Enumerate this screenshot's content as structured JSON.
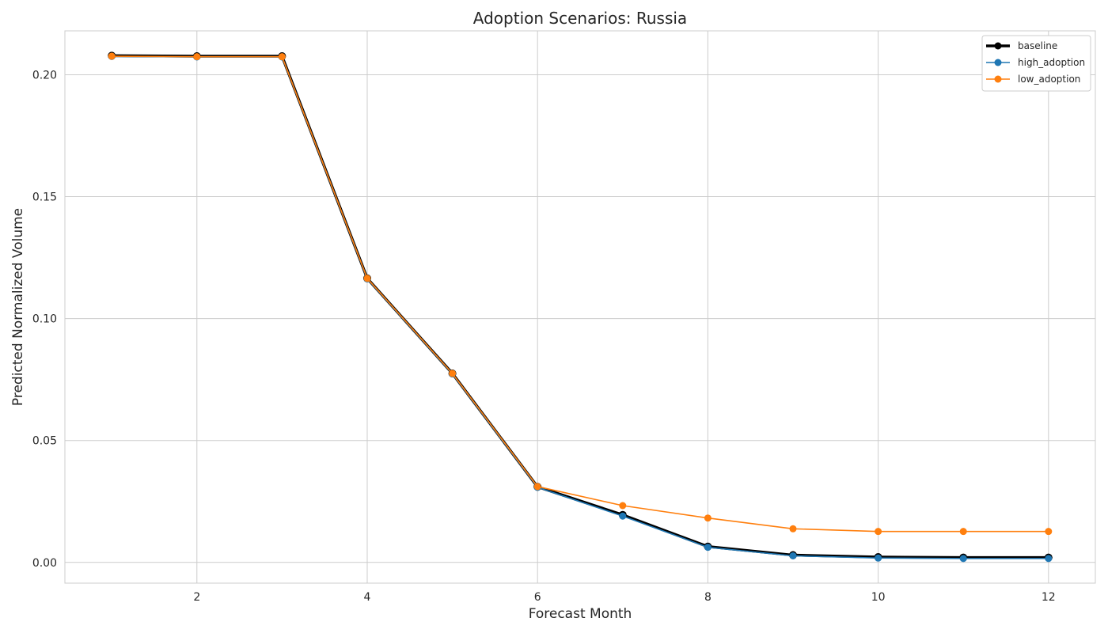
{
  "chart_data": {
    "type": "line",
    "title": "Adoption Scenarios: Russia",
    "xlabel": "Forecast Month",
    "ylabel": "Predicted Normalized Volume",
    "xlim": [
      0.45,
      12.55
    ],
    "ylim": [
      -0.0085,
      0.218
    ],
    "xticks": [
      2,
      4,
      6,
      8,
      10,
      12
    ],
    "yticks": [
      0.0,
      0.05,
      0.1,
      0.15,
      0.2
    ],
    "ytick_labels": [
      "0.00",
      "0.05",
      "0.10",
      "0.15",
      "0.20"
    ],
    "grid": true,
    "legend_position": "top-right",
    "x": [
      1,
      2,
      3,
      4,
      5,
      6,
      7,
      8,
      9,
      10,
      11,
      12
    ],
    "series": [
      {
        "name": "baseline",
        "color": "#000000",
        "values": [
          0.2078,
          0.2076,
          0.2076,
          0.1165,
          0.0775,
          0.031,
          0.0195,
          0.0065,
          0.003,
          0.0022,
          0.002,
          0.002
        ]
      },
      {
        "name": "high_adoption",
        "color": "#1f77b4",
        "values": [
          0.2075,
          0.2073,
          0.2073,
          0.1163,
          0.0773,
          0.0308,
          0.019,
          0.0062,
          0.0027,
          0.0018,
          0.0016,
          0.0016
        ]
      },
      {
        "name": "low_adoption",
        "color": "#ff7f0e",
        "values": [
          0.2076,
          0.2074,
          0.2074,
          0.1165,
          0.0775,
          0.0311,
          0.0233,
          0.0182,
          0.0138,
          0.0127,
          0.0127,
          0.0127
        ]
      }
    ]
  }
}
